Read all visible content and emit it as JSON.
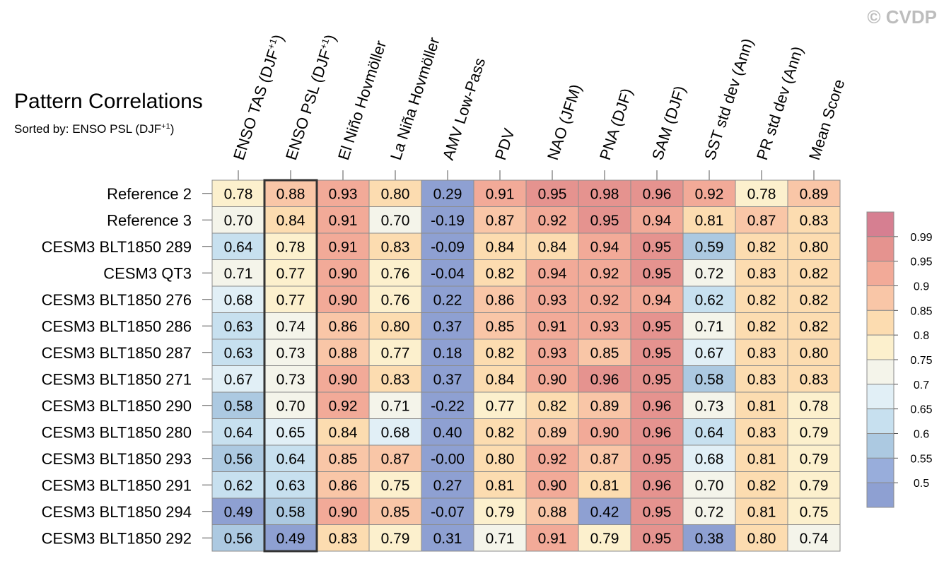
{
  "watermark": "© CVDP",
  "chart_data": {
    "type": "heatmap",
    "title": "Pattern Correlations",
    "subtitle_prefix": "Sorted by: ENSO PSL (DJF",
    "subtitle_sup": "+1",
    "subtitle_suffix": ")",
    "sorted_column_index": 1,
    "columns": [
      {
        "label": "ENSO TAS (DJF",
        "sup": "+1",
        "suffix": ")"
      },
      {
        "label": "ENSO PSL (DJF",
        "sup": "+1",
        "suffix": ")"
      },
      {
        "label": "El Niño Hovmöller",
        "sup": "",
        "suffix": ""
      },
      {
        "label": "La Niña Hovmöller",
        "sup": "",
        "suffix": ""
      },
      {
        "label": "AMV Low-Pass",
        "sup": "",
        "suffix": ""
      },
      {
        "label": "PDV",
        "sup": "",
        "suffix": ""
      },
      {
        "label": "NAO (JFM)",
        "sup": "",
        "suffix": ""
      },
      {
        "label": "PNA (DJF)",
        "sup": "",
        "suffix": ""
      },
      {
        "label": "SAM (DJF)",
        "sup": "",
        "suffix": ""
      },
      {
        "label": "SST std dev (Ann)",
        "sup": "",
        "suffix": ""
      },
      {
        "label": "PR std dev (Ann)",
        "sup": "",
        "suffix": ""
      },
      {
        "label": "Mean Score",
        "sup": "",
        "suffix": ""
      }
    ],
    "rows": [
      "Reference 2",
      "Reference 3",
      "CESM3 BLT1850 289",
      "CESM3 QT3",
      "CESM3 BLT1850 276",
      "CESM3 BLT1850 286",
      "CESM3 BLT1850 287",
      "CESM3 BLT1850 271",
      "CESM3 BLT1850 290",
      "CESM3 BLT1850 280",
      "CESM3 BLT1850 293",
      "CESM3 BLT1850 291",
      "CESM3 BLT1850 294",
      "CESM3 BLT1850 292"
    ],
    "values": [
      [
        "0.78",
        "0.88",
        "0.93",
        "0.80",
        "0.29",
        "0.91",
        "0.95",
        "0.98",
        "0.96",
        "0.92",
        "0.78",
        "0.89"
      ],
      [
        "0.70",
        "0.84",
        "0.91",
        "0.70",
        "-0.19",
        "0.87",
        "0.92",
        "0.95",
        "0.94",
        "0.81",
        "0.87",
        "0.83"
      ],
      [
        "0.64",
        "0.78",
        "0.91",
        "0.83",
        "-0.09",
        "0.84",
        "0.84",
        "0.94",
        "0.95",
        "0.59",
        "0.82",
        "0.80"
      ],
      [
        "0.71",
        "0.77",
        "0.90",
        "0.76",
        "-0.04",
        "0.82",
        "0.94",
        "0.92",
        "0.95",
        "0.72",
        "0.83",
        "0.82"
      ],
      [
        "0.68",
        "0.77",
        "0.90",
        "0.76",
        "0.22",
        "0.86",
        "0.93",
        "0.92",
        "0.94",
        "0.62",
        "0.82",
        "0.82"
      ],
      [
        "0.63",
        "0.74",
        "0.86",
        "0.80",
        "0.37",
        "0.85",
        "0.91",
        "0.93",
        "0.95",
        "0.71",
        "0.82",
        "0.82"
      ],
      [
        "0.63",
        "0.73",
        "0.88",
        "0.77",
        "0.18",
        "0.82",
        "0.93",
        "0.85",
        "0.95",
        "0.67",
        "0.83",
        "0.80"
      ],
      [
        "0.67",
        "0.73",
        "0.90",
        "0.83",
        "0.37",
        "0.84",
        "0.90",
        "0.96",
        "0.95",
        "0.58",
        "0.83",
        "0.83"
      ],
      [
        "0.58",
        "0.70",
        "0.92",
        "0.71",
        "-0.22",
        "0.77",
        "0.82",
        "0.89",
        "0.96",
        "0.73",
        "0.81",
        "0.78"
      ],
      [
        "0.64",
        "0.65",
        "0.84",
        "0.68",
        "0.40",
        "0.82",
        "0.89",
        "0.90",
        "0.96",
        "0.64",
        "0.83",
        "0.79"
      ],
      [
        "0.56",
        "0.64",
        "0.85",
        "0.87",
        "-0.00",
        "0.80",
        "0.92",
        "0.87",
        "0.95",
        "0.68",
        "0.81",
        "0.79"
      ],
      [
        "0.62",
        "0.63",
        "0.86",
        "0.75",
        "0.27",
        "0.81",
        "0.90",
        "0.81",
        "0.96",
        "0.70",
        "0.82",
        "0.79"
      ],
      [
        "0.49",
        "0.58",
        "0.90",
        "0.85",
        "-0.07",
        "0.79",
        "0.88",
        "0.42",
        "0.95",
        "0.72",
        "0.81",
        "0.75"
      ],
      [
        "0.56",
        "0.49",
        "0.83",
        "0.79",
        "0.31",
        "0.71",
        "0.91",
        "0.79",
        "0.95",
        "0.38",
        "0.80",
        "0.74"
      ]
    ],
    "colorbar": {
      "levels": [
        "0.99",
        "0.95",
        "0.9",
        "0.85",
        "0.8",
        "0.75",
        "0.7",
        "0.65",
        "0.6",
        "0.55",
        "0.5"
      ],
      "colors": [
        "#d67f91",
        "#e5938f",
        "#f2aa98",
        "#f9c6a7",
        "#fcdcb0",
        "#fcf0cd",
        "#f4f4ea",
        "#e1eff6",
        "#c7e0ef",
        "#acc9e1",
        "#98addb",
        "#8ea0d2"
      ]
    }
  }
}
